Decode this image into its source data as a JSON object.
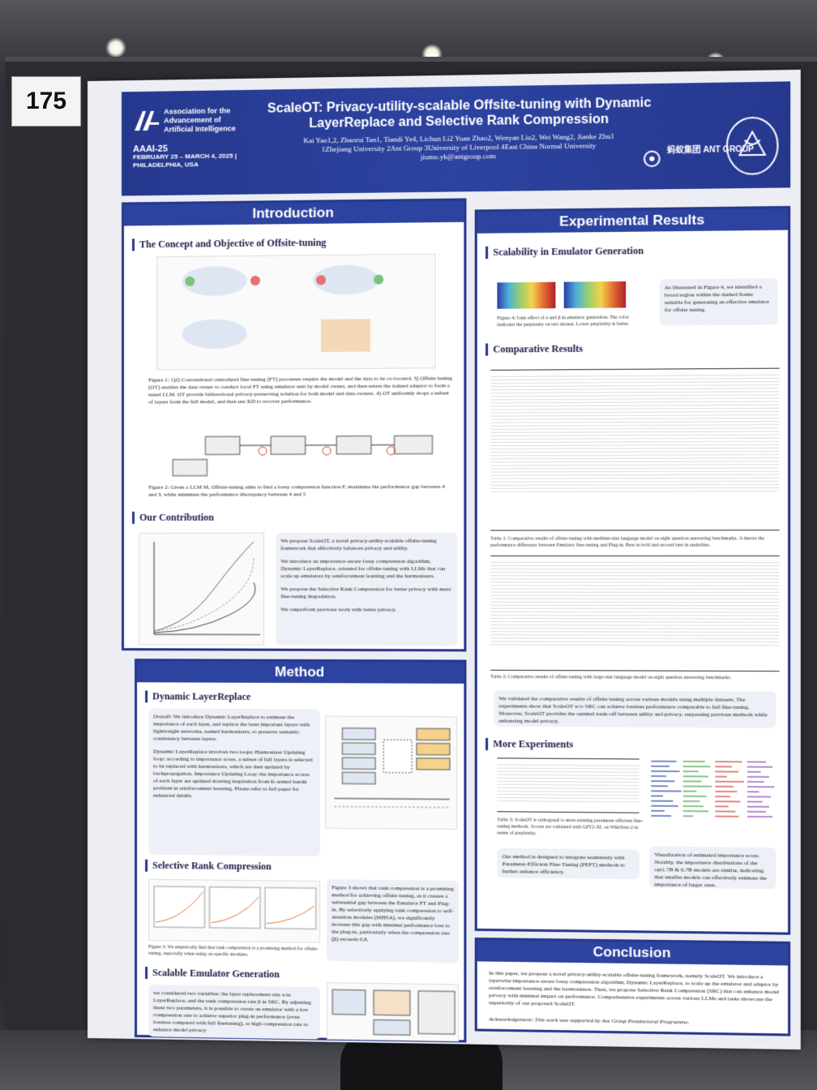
{
  "booth_number": "175",
  "header": {
    "org_name": "Association for the Advancement of Artificial Intelligence",
    "conf_name": "AAAI-25",
    "conf_dates": "FEBRUARY 25 – MARCH 4, 2025 |",
    "conf_place": "PHILADELPHIA, USA",
    "title": "ScaleOT: Privacy-utility-scalable Offsite-tuning with Dynamic LayerReplace and Selective Rank Compression",
    "authors": "Kai Yao1,2, Zhaorui Tan1, Tiandi Ye4, Lichun Li2 Yuan Zhao2, Wenyan Liu2, Wei Wang2, Jianke Zhu1",
    "affiliations": "1Zhejiang University 2Ant Group 3University of Liverpool 4East China Normal University",
    "email": "jiumo.yk@antgroup.com",
    "ant_name": "蚂蚁集团 ANT GROUP"
  },
  "introduction": {
    "title": "Introduction",
    "sub1": "The Concept and Objective of Offsite-tuning",
    "fig1_caption": "Figure 1: 1)2) Conventional centralized fine-tuning (FT) processes require the model and the data to be co-located. 3) Offsite tuning (OT) enables the data owner to conduct local FT using emulator sent by model owner, and then return the trained adaptor to form a tuned LLM. OT provide bidirectional privacy-preserving solution for both model and data owners. 4) OT uniformly drops a subset of layers from the full model, and then use KD to recover performance.",
    "fig2_caption": "Figure 2: Given a LLM M, Offsite-tuning aims to find a lossy compression function F, maximize the performance gap between 4 and 3, while minimize the performance discrepancy between 4 and 5",
    "sub2": "Our Contribution",
    "contrib": [
      "We propose ScaleOT, a novel privacy-utility-scalable offsite-tuning framework that effectively balances privacy and utility.",
      "We introduce an importance-aware lossy compression algorithm, Dynamic LayerReplace, oriented for offsite-tuning with LLMs that can scale up emulators by reinforcement learning and the harmonizers.",
      "We propose the Selective Rank Compression for better privacy with mere fine-tuning degradation.",
      "We outperform previous work with better privacy."
    ]
  },
  "method": {
    "title": "Method",
    "sub1": "Dynamic LayerReplace",
    "overall": "Overall: We introduce Dynamic LayerReplace to estimate the importance of each layer, and replace the least important layers with lightweight networks, named harmonizers, to preserve semantic consistency between layers.",
    "loops": "Dynamic LayerReplace involves two loops: Harmonizer Updating loop: according to importance score, a subset of full layers is selected to be replaced with harmonizers, which are then updated by backpropagation. Importance Updating Loop: the importance scores of each layer are updated drawing inspiration from K-armed bandit problem in reinforcement learning. Please refer to full paper for enhanced details.",
    "sub2": "Selective Rank Compression",
    "src_text": "Figure 3 shows that rank compression is a promising method for achieving offsite-tuning, as it creates a substantial gap between the Emulator FT and Plug-in. By selectively applying rank compression to self-attention modules (MHSA), we significantly increase this gap with minimal performance loss to the plug-in, particularly when the compression rate (β) exceeds 0.8.",
    "fig3_caption": "Figure 3: We empirically find that rank compression is a promising method for offsite-tuning, especially when using on specific modules.",
    "sub3": "Scalable Emulator Generation",
    "seg_text": "we considered two variables: the layer replacement rate α in LayerReplace, and the rank compression rate β in SRC. By adjusting these two parameters, it is possible to create an emulator with a low compression rate to achieve superior plug-in performance (even lossless compared with full finetuning), or high compression rate to enhance model privacy"
  },
  "results": {
    "title": "Experimental Results",
    "sub1": "Scalability in Emulator Generation",
    "fig4_caption": "Figure 4: Joint effect of α and β in emulator generation. The color indicates the perplexity on test dataset. Lower perplexity is better.",
    "fig4_note": "As illustrated in Figure 4, we identified a broad region within the dashed frame suitable for generating an effective emulator for offsite tuning.",
    "sub2": "Comparative Results",
    "table1_caption": "Table 1: Comparative results of offsite-tuning with medium-size language model on eight question answering benchmarks. Δ denote the performance difference between Emulator fine-tuning and Plug-in. Best in bold and second best in underline.",
    "table2_caption": "Table 2: Comparative results of offsite-tuning with large-size language model on eight question answering benchmarks.",
    "compare_note": "We validated the comparative results of offsite tuning across various models using multiple datasets. The experiments show that ScaleOT w/o SRC can achieve lossless performance comparable to full fine-tuning. Moreover, ScaleOT provides the optimal trade-off between utility and privacy, surpassing previous methods while enhancing model privacy.",
    "sub3": "More Experiments",
    "table3_caption": "Table 3: ScaleOT is orthogonal to most existing parameter-efficient fine-tuning methods. Scores are validated with GPT2-XL on WikiText-2 in terms of perplexity.",
    "peft_note": "Our method is designed to integrate seamlessly with Parameter-Efficient Fine-Tuning (PEFT) methods to further enhance efficiency.",
    "importance_note": "Visualization of estimated importance score. Notably, the importance distributions of the opt1.7B & 6.7B models are similar, indicating that smaller models can effectively estimate the importance of larger ones."
  },
  "conclusion": {
    "title": "Conclusion",
    "text": "In this paper, we propose a novel privacy-utility-scalable offsite-tuning framework, namely ScaleOT. We introduce a layerwise importance-aware lossy compression algorithm, Dynamic LayerReplace, to scale up the emulator and adaptor by reinforcement learning and the harmonizers. Then, we propose Selective Rank Compression (SRC) that can enhance model privacy with minimal impact on performance. Comprehensive experiments across various LLMs and tasks showcase the superiority of our proposed ScaleOT.",
    "ack": "Acknowledgement: This work was supported by Ant Group Postdoctoral Programme."
  }
}
